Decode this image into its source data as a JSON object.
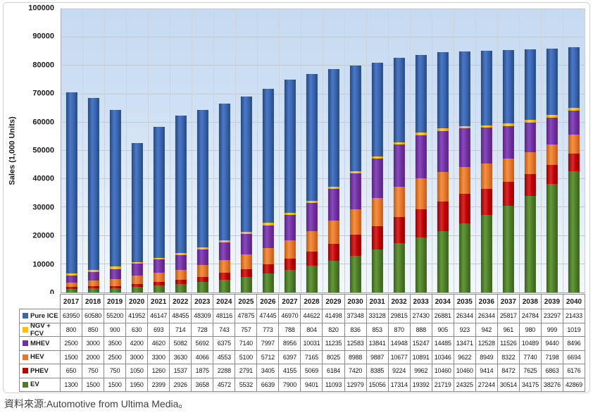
{
  "source_note": "資料來源:Automotive from Ultima Media。",
  "chart_data": {
    "type": "bar",
    "stacked": true,
    "title": "",
    "xlabel": "",
    "ylabel": "Sales (1,000 Units)",
    "ylim": [
      0,
      100000
    ],
    "yticks": [
      0,
      10000,
      20000,
      30000,
      40000,
      50000,
      60000,
      70000,
      80000,
      90000,
      100000
    ],
    "grid": true,
    "legend_position": "data-table-left",
    "categories": [
      "2017",
      "2018",
      "2019",
      "2020",
      "2021",
      "2022",
      "2023",
      "2024",
      "2025",
      "2026",
      "2027",
      "2028",
      "2029",
      "2030",
      "2031",
      "2032",
      "2033",
      "2034",
      "2035",
      "2036",
      "2037",
      "2038",
      "2039",
      "2040"
    ],
    "series": [
      {
        "name": "Pure ICE",
        "color": "#3A64AC",
        "color_dark": "#24487E",
        "color_light": "#4A78C8",
        "values": [
          63950,
          60580,
          55200,
          41952,
          46147,
          48455,
          48309,
          48116,
          47875,
          47445,
          46970,
          44622,
          41498,
          37348,
          33128,
          29815,
          27430,
          26881,
          26344,
          26344,
          25817,
          24784,
          23297,
          21433
        ]
      },
      {
        "name": "NGV + FCV",
        "color": "#FFC000",
        "color_dark": "#C79400",
        "color_light": "#FFD34A",
        "values": [
          800,
          850,
          900,
          630,
          693,
          714,
          728,
          743,
          757,
          773,
          788,
          804,
          820,
          836,
          853,
          870,
          888,
          905,
          923,
          942,
          961,
          980,
          999,
          1019
        ]
      },
      {
        "name": "MHEV",
        "color": "#7030A0",
        "color_dark": "#59237F",
        "color_light": "#8A4ABF",
        "values": [
          2500,
          3000,
          3500,
          4200,
          4620,
          5082,
          5692,
          6375,
          7140,
          7997,
          8956,
          10031,
          11235,
          12583,
          13841,
          14948,
          15247,
          14485,
          13471,
          12528,
          11526,
          10489,
          9440,
          8496
        ]
      },
      {
        "name": "HEV",
        "color": "#E8762C",
        "color_dark": "#C05A14",
        "color_light": "#F49242",
        "values": [
          1500,
          2000,
          2500,
          3000,
          3300,
          3630,
          4066,
          4553,
          5100,
          5712,
          6397,
          7165,
          8025,
          8988,
          9887,
          10677,
          10891,
          10346,
          9622,
          8949,
          8322,
          7740,
          7198,
          6694
        ]
      },
      {
        "name": "PHEV",
        "color": "#C00000",
        "color_dark": "#8F0000",
        "color_light": "#D82A2A",
        "values": [
          650,
          750,
          750,
          1050,
          1260,
          1537,
          1875,
          2288,
          2791,
          3405,
          4155,
          5069,
          6184,
          7420,
          8385,
          9224,
          9962,
          10460,
          10460,
          9414,
          8472,
          7625,
          6863,
          6176
        ]
      },
      {
        "name": "EV",
        "color": "#4E7B28",
        "color_dark": "#3A5E1F",
        "color_light": "#649A38",
        "values": [
          1300,
          1500,
          1500,
          1950,
          2399,
          2926,
          3658,
          4572,
          5532,
          6639,
          7900,
          9401,
          11093,
          12979,
          15056,
          17314,
          19392,
          21719,
          24325,
          27244,
          30514,
          34175,
          38276,
          42869
        ]
      }
    ]
  }
}
